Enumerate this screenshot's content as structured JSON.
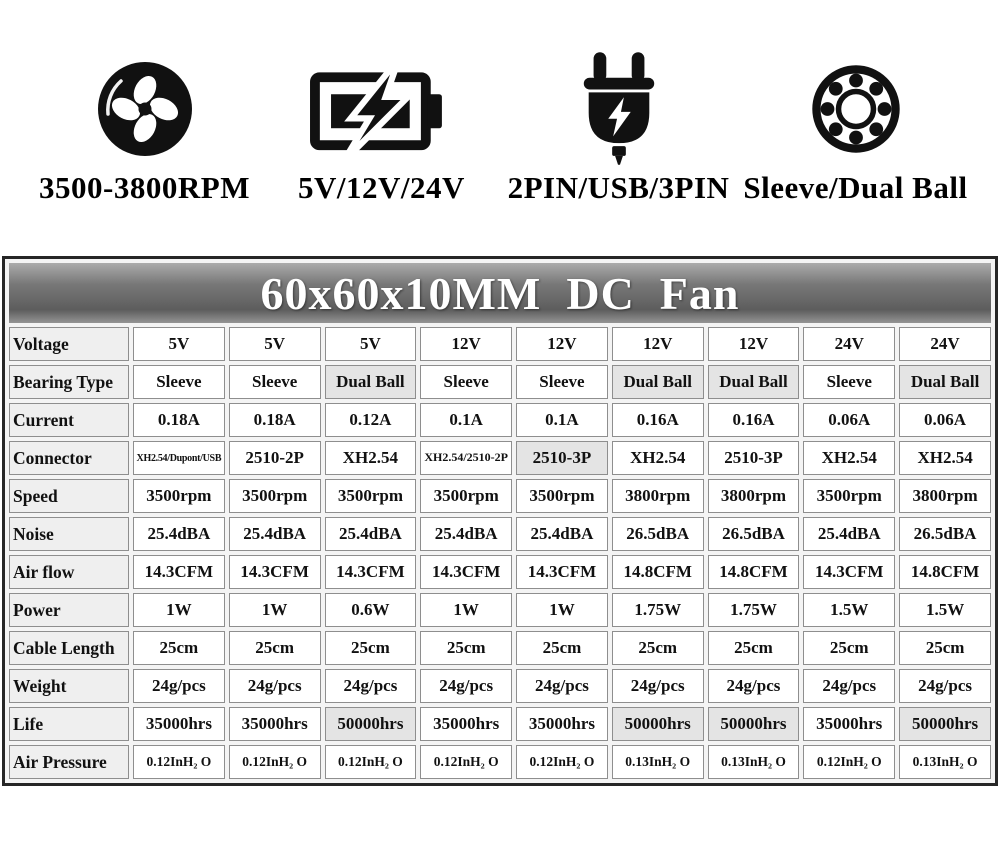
{
  "features": {
    "items": [
      {
        "icon": "fan-icon",
        "label": "3500-3800RPM"
      },
      {
        "icon": "battery-icon",
        "label": "5V/12V/24V"
      },
      {
        "icon": "plug-icon",
        "label": "2PIN/USB/3PIN"
      },
      {
        "icon": "bearing-icon",
        "label": "Sleeve/Dual Ball"
      }
    ]
  },
  "table": {
    "title": "60x60x10MM  DC  Fan",
    "rows": [
      {
        "label": "Voltage",
        "values": [
          {
            "text": "5V"
          },
          {
            "text": "5V"
          },
          {
            "text": "5V"
          },
          {
            "text": "12V"
          },
          {
            "text": "12V"
          },
          {
            "text": "12V"
          },
          {
            "text": "12V"
          },
          {
            "text": "24V"
          },
          {
            "text": "24V"
          }
        ]
      },
      {
        "label": "Bearing Type",
        "values": [
          {
            "text": "Sleeve"
          },
          {
            "text": "Sleeve"
          },
          {
            "text": "Dual Ball",
            "hl": true
          },
          {
            "text": "Sleeve"
          },
          {
            "text": "Sleeve"
          },
          {
            "text": "Dual Ball",
            "hl": true
          },
          {
            "text": "Dual Ball",
            "hl": true
          },
          {
            "text": "Sleeve"
          },
          {
            "text": "Dual Ball",
            "hl": true
          }
        ]
      },
      {
        "label": "Current",
        "values": [
          {
            "text": "0.18A"
          },
          {
            "text": "0.18A"
          },
          {
            "text": "0.12A"
          },
          {
            "text": "0.1A"
          },
          {
            "text": "0.1A"
          },
          {
            "text": "0.16A"
          },
          {
            "text": "0.16A"
          },
          {
            "text": "0.06A"
          },
          {
            "text": "0.06A"
          }
        ]
      },
      {
        "label": "Connector",
        "values": [
          {
            "text": "XH2.54/Dupont/USB",
            "size": "xs"
          },
          {
            "text": "2510-2P"
          },
          {
            "text": "XH2.54"
          },
          {
            "text": "XH2.54/2510-2P",
            "size": "sm"
          },
          {
            "text": "2510-3P",
            "hl": true
          },
          {
            "text": "XH2.54"
          },
          {
            "text": "2510-3P"
          },
          {
            "text": "XH2.54"
          },
          {
            "text": "XH2.54"
          }
        ]
      },
      {
        "label": "Speed",
        "values": [
          {
            "text": "3500rpm"
          },
          {
            "text": "3500rpm"
          },
          {
            "text": "3500rpm"
          },
          {
            "text": "3500rpm"
          },
          {
            "text": "3500rpm"
          },
          {
            "text": "3800rpm"
          },
          {
            "text": "3800rpm"
          },
          {
            "text": "3500rpm"
          },
          {
            "text": "3800rpm"
          }
        ]
      },
      {
        "label": "Noise",
        "values": [
          {
            "text": "25.4dBA"
          },
          {
            "text": "25.4dBA"
          },
          {
            "text": "25.4dBA"
          },
          {
            "text": "25.4dBA"
          },
          {
            "text": "25.4dBA"
          },
          {
            "text": "26.5dBA"
          },
          {
            "text": "26.5dBA"
          },
          {
            "text": "25.4dBA"
          },
          {
            "text": "26.5dBA"
          }
        ]
      },
      {
        "label": "Air flow",
        "values": [
          {
            "text": "14.3CFM"
          },
          {
            "text": "14.3CFM"
          },
          {
            "text": "14.3CFM"
          },
          {
            "text": "14.3CFM"
          },
          {
            "text": "14.3CFM"
          },
          {
            "text": "14.8CFM"
          },
          {
            "text": "14.8CFM"
          },
          {
            "text": "14.3CFM"
          },
          {
            "text": "14.8CFM"
          }
        ]
      },
      {
        "label": "Power",
        "values": [
          {
            "text": "1W"
          },
          {
            "text": "1W"
          },
          {
            "text": "0.6W"
          },
          {
            "text": "1W"
          },
          {
            "text": "1W"
          },
          {
            "text": "1.75W"
          },
          {
            "text": "1.75W"
          },
          {
            "text": "1.5W"
          },
          {
            "text": "1.5W"
          }
        ]
      },
      {
        "label": "Cable Length",
        "values": [
          {
            "text": "25cm"
          },
          {
            "text": "25cm"
          },
          {
            "text": "25cm"
          },
          {
            "text": "25cm"
          },
          {
            "text": "25cm"
          },
          {
            "text": "25cm"
          },
          {
            "text": "25cm"
          },
          {
            "text": "25cm"
          },
          {
            "text": "25cm"
          }
        ]
      },
      {
        "label": "Weight",
        "values": [
          {
            "text": "24g/pcs"
          },
          {
            "text": "24g/pcs"
          },
          {
            "text": "24g/pcs"
          },
          {
            "text": "24g/pcs"
          },
          {
            "text": "24g/pcs"
          },
          {
            "text": "24g/pcs"
          },
          {
            "text": "24g/pcs"
          },
          {
            "text": "24g/pcs"
          },
          {
            "text": "24g/pcs"
          }
        ]
      },
      {
        "label": "Life",
        "values": [
          {
            "text": "35000hrs"
          },
          {
            "text": "35000hrs"
          },
          {
            "text": "50000hrs",
            "hl": true
          },
          {
            "text": "35000hrs"
          },
          {
            "text": "35000hrs"
          },
          {
            "text": "50000hrs",
            "hl": true
          },
          {
            "text": "50000hrs",
            "hl": true
          },
          {
            "text": "35000hrs"
          },
          {
            "text": "50000hrs",
            "hl": true
          }
        ]
      },
      {
        "label": "Air Pressure",
        "compact": true,
        "values": [
          {
            "text": "0.12InH₂ O"
          },
          {
            "text": "0.12InH₂ O"
          },
          {
            "text": "0.12InH₂ O"
          },
          {
            "text": "0.12InH₂ O"
          },
          {
            "text": "0.12InH₂ O"
          },
          {
            "text": "0.13InH₂ O"
          },
          {
            "text": "0.13InH₂ O"
          },
          {
            "text": "0.12InH₂ O"
          },
          {
            "text": "0.13InH₂ O"
          }
        ]
      }
    ]
  },
  "colors": {
    "icon_black": "#111111",
    "header_gradient_top": "#ababab",
    "header_gradient_bottom": "#949494",
    "header_text": "#ffffff",
    "label_cell_bg": "#efefef",
    "highlight_cell_bg": "#e4e4e4",
    "cell_border": "#8e8e8e",
    "table_border": "#262626"
  }
}
